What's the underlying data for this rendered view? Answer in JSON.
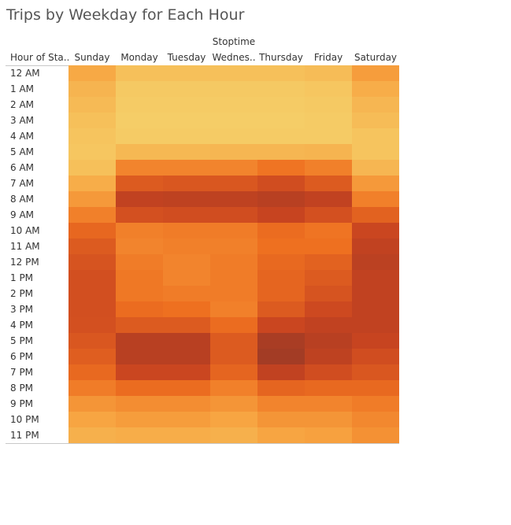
{
  "chart_data": {
    "type": "heatmap",
    "title": "Trips by Weekday for Each Hour",
    "column_group_label": "Stoptime",
    "row_header_label": "Hour of Sta..",
    "columns": [
      "Sunday",
      "Monday",
      "Tuesday",
      "Wednes..",
      "Thursday",
      "Friday",
      "Saturday"
    ],
    "rows": [
      "12 AM",
      "1 AM",
      "2 AM",
      "3 AM",
      "4 AM",
      "5 AM",
      "6 AM",
      "7 AM",
      "8 AM",
      "9 AM",
      "10 AM",
      "11 AM",
      "12 PM",
      "1 PM",
      "2 PM",
      "3 PM",
      "4 PM",
      "5 PM",
      "6 PM",
      "7 PM",
      "8 PM",
      "9 PM",
      "10 PM",
      "11 PM"
    ],
    "values": [
      [
        0.22,
        0.1,
        0.1,
        0.1,
        0.1,
        0.12,
        0.28
      ],
      [
        0.16,
        0.05,
        0.05,
        0.05,
        0.05,
        0.07,
        0.2
      ],
      [
        0.13,
        0.04,
        0.04,
        0.04,
        0.04,
        0.05,
        0.15
      ],
      [
        0.1,
        0.03,
        0.03,
        0.03,
        0.03,
        0.04,
        0.12
      ],
      [
        0.08,
        0.04,
        0.04,
        0.04,
        0.04,
        0.04,
        0.08
      ],
      [
        0.07,
        0.14,
        0.14,
        0.15,
        0.15,
        0.16,
        0.08
      ],
      [
        0.1,
        0.4,
        0.4,
        0.4,
        0.48,
        0.42,
        0.15
      ],
      [
        0.2,
        0.62,
        0.64,
        0.64,
        0.7,
        0.62,
        0.3
      ],
      [
        0.3,
        0.8,
        0.82,
        0.82,
        0.86,
        0.8,
        0.42
      ],
      [
        0.42,
        0.68,
        0.7,
        0.7,
        0.76,
        0.68,
        0.58
      ],
      [
        0.55,
        0.42,
        0.44,
        0.44,
        0.52,
        0.48,
        0.74
      ],
      [
        0.62,
        0.4,
        0.42,
        0.42,
        0.5,
        0.5,
        0.8
      ],
      [
        0.66,
        0.44,
        0.4,
        0.44,
        0.54,
        0.58,
        0.84
      ],
      [
        0.69,
        0.46,
        0.4,
        0.44,
        0.56,
        0.62,
        0.8
      ],
      [
        0.69,
        0.46,
        0.44,
        0.44,
        0.56,
        0.66,
        0.8
      ],
      [
        0.69,
        0.52,
        0.5,
        0.42,
        0.62,
        0.72,
        0.8
      ],
      [
        0.68,
        0.62,
        0.62,
        0.52,
        0.74,
        0.8,
        0.8
      ],
      [
        0.64,
        0.86,
        0.86,
        0.62,
        0.96,
        0.86,
        0.76
      ],
      [
        0.6,
        0.86,
        0.86,
        0.62,
        1.0,
        0.82,
        0.7
      ],
      [
        0.54,
        0.74,
        0.74,
        0.56,
        0.8,
        0.7,
        0.64
      ],
      [
        0.44,
        0.52,
        0.52,
        0.42,
        0.56,
        0.54,
        0.54
      ],
      [
        0.32,
        0.36,
        0.36,
        0.32,
        0.4,
        0.4,
        0.44
      ],
      [
        0.24,
        0.28,
        0.28,
        0.24,
        0.32,
        0.32,
        0.38
      ],
      [
        0.18,
        0.2,
        0.2,
        0.18,
        0.24,
        0.26,
        0.34
      ]
    ],
    "color_scale": [
      "#f5d36c",
      "#f7a340",
      "#ee7020",
      "#c94420",
      "#a33c25"
    ]
  }
}
